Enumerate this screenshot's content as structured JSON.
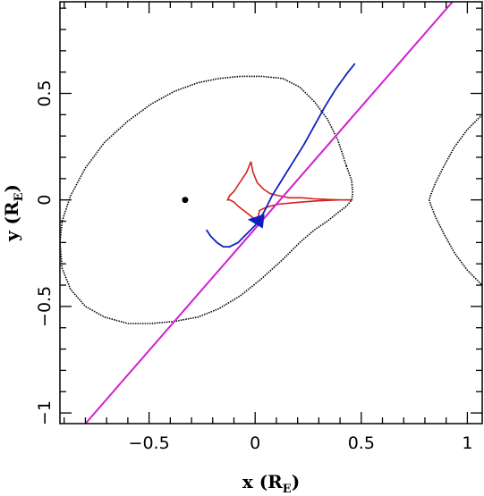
{
  "chart_data": {
    "type": "line",
    "title": "",
    "xlabel": "x (R",
    "xlabel_sub": "E",
    "xlabel_close": ")",
    "ylabel": "y (R",
    "ylabel_sub": "E",
    "ylabel_close": ")",
    "xlim": [
      -0.92,
      1.07
    ],
    "ylim": [
      -1.05,
      0.93
    ],
    "xticks": [
      {
        "value": -0.5,
        "label": "−0.5"
      },
      {
        "value": 0,
        "label": "0"
      },
      {
        "value": 0.5,
        "label": "0.5"
      },
      {
        "value": 1,
        "label": "1"
      }
    ],
    "yticks": [
      {
        "value": -1,
        "label": "−1"
      },
      {
        "value": -0.5,
        "label": "−0.5"
      },
      {
        "value": 0,
        "label": "0"
      },
      {
        "value": 0.5,
        "label": "0.5"
      }
    ],
    "grid": false,
    "colors": {
      "critical_curve": "#000000",
      "caustic": "#d42020",
      "trajectory": "#1020c0",
      "source_line": "#d020d0",
      "lens_point": "#000000"
    },
    "series": [
      {
        "style": "critical_curve_left",
        "x": [
          0.43,
          0.39,
          0.34,
          0.28,
          0.21,
          0.13,
          0.03,
          -0.07,
          -0.17,
          -0.27,
          -0.38,
          -0.49,
          -0.6,
          -0.71,
          -0.8,
          -0.87,
          -0.91,
          -0.92,
          -0.91,
          -0.87,
          -0.8,
          -0.71,
          -0.6,
          -0.49,
          -0.38,
          -0.27,
          -0.17,
          -0.07,
          0.03,
          0.13,
          0.21,
          0.28,
          0.34,
          0.39,
          0.43,
          0.455,
          0.46,
          0.455,
          0.43
        ],
        "y": [
          0.16,
          0.28,
          0.38,
          0.46,
          0.53,
          0.57,
          0.58,
          0.58,
          0.57,
          0.55,
          0.51,
          0.45,
          0.37,
          0.27,
          0.15,
          0.02,
          -0.1,
          -0.2,
          -0.32,
          -0.42,
          -0.5,
          -0.55,
          -0.58,
          -0.58,
          -0.57,
          -0.55,
          -0.51,
          -0.45,
          -0.37,
          -0.28,
          -0.2,
          -0.14,
          -0.1,
          -0.06,
          -0.03,
          0.0,
          0.03,
          0.09,
          0.16
        ]
      },
      {
        "style": "critical_curve_right",
        "x": [
          1.07,
          1.0,
          0.94,
          0.89,
          0.85,
          0.83,
          0.82,
          0.83,
          0.85,
          0.89,
          0.94,
          1.0,
          1.07
        ],
        "y": [
          0.4,
          0.33,
          0.25,
          0.16,
          0.08,
          0.03,
          0.0,
          -0.03,
          -0.08,
          -0.16,
          -0.25,
          -0.33,
          -0.4
        ]
      },
      {
        "style": "caustic",
        "x": [
          -0.02,
          -0.01,
          0.01,
          0.04,
          0.07,
          0.11,
          0.16,
          0.22,
          0.28,
          0.34,
          0.4,
          0.46,
          0.4,
          0.34,
          0.28,
          0.22,
          0.16,
          0.11,
          0.07,
          0.04,
          0.02,
          0.01,
          -0.04,
          -0.08,
          -0.1,
          -0.12,
          -0.13,
          -0.12,
          -0.1,
          -0.08,
          -0.04,
          -0.02
        ],
        "y": [
          0.18,
          0.13,
          0.08,
          0.05,
          0.03,
          0.02,
          0.01,
          0.01,
          0.005,
          0.002,
          0.0,
          0.0,
          0.0,
          -0.002,
          -0.005,
          -0.01,
          -0.015,
          -0.02,
          -0.03,
          -0.04,
          -0.05,
          -0.1,
          -0.06,
          -0.03,
          -0.01,
          0.0,
          0.0,
          0.02,
          0.04,
          0.07,
          0.13,
          0.18
        ]
      },
      {
        "style": "trajectory",
        "x": [
          -0.23,
          -0.21,
          -0.18,
          -0.15,
          -0.12,
          -0.08,
          -0.04,
          0.0,
          0.04,
          0.08,
          0.13,
          0.18,
          0.23,
          0.28,
          0.33,
          0.38,
          0.43,
          0.47
        ],
        "y": [
          -0.14,
          -0.17,
          -0.2,
          -0.22,
          -0.22,
          -0.2,
          -0.16,
          -0.12,
          -0.06,
          0.02,
          0.1,
          0.18,
          0.26,
          0.35,
          0.44,
          0.52,
          0.59,
          0.64
        ]
      },
      {
        "style": "source_line",
        "x": [
          -0.8,
          0.93
        ],
        "y": [
          -1.05,
          0.93
        ]
      }
    ],
    "lens_point": {
      "x": -0.33,
      "y": 0.0
    },
    "arrow": {
      "x": 0.04,
      "y": -0.1,
      "toward_x": -0.05,
      "toward_y": -0.09
    }
  }
}
